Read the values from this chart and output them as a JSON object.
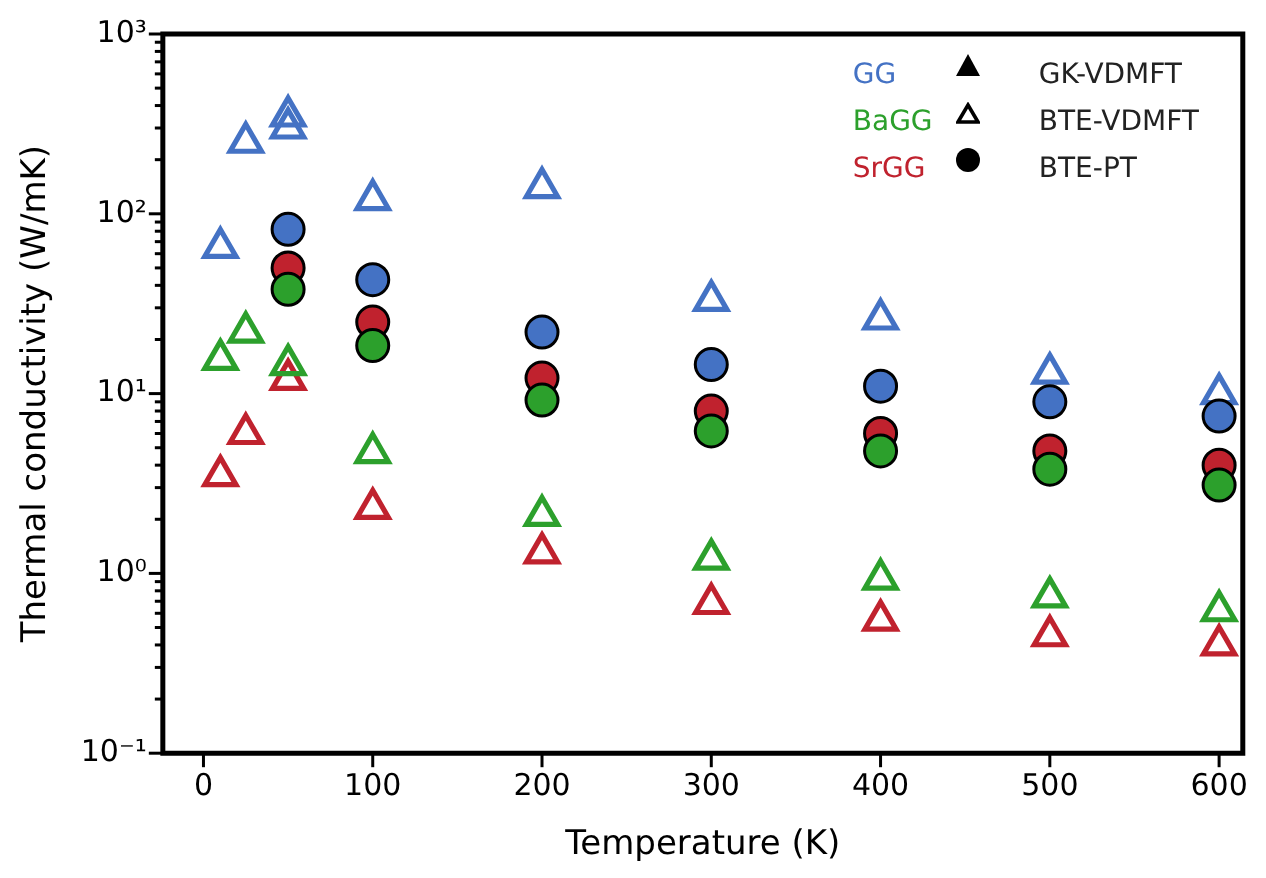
{
  "chart_data": {
    "type": "scatter",
    "xlabel": "Temperature (K)",
    "ylabel": "Thermal conductivity (W/mK)",
    "log": "y",
    "xlim": [
      -24,
      614
    ],
    "xticks": [
      0,
      100,
      200,
      300,
      400,
      500,
      600
    ],
    "ylim": [
      0.1,
      1000
    ],
    "yticks": [
      {
        "value": 0.1,
        "label": "10⁻¹"
      },
      {
        "value": 1,
        "label": "10⁰"
      },
      {
        "value": 10,
        "label": "10¹"
      },
      {
        "value": 100,
        "label": "10²"
      },
      {
        "value": 1000,
        "label": "10³"
      }
    ],
    "grid": false,
    "legend": "top right",
    "annotations": [
      "GK-VDMFT",
      "BTE-VDMFT",
      "BTE-PT"
    ],
    "series": [
      {
        "name": "GG",
        "color": "#4472c4",
        "marker": "triangle",
        "x": [
          10,
          25,
          50,
          50,
          100,
          200,
          300,
          400,
          500,
          600
        ],
        "values": [
          65,
          250,
          350,
          300,
          120,
          140,
          33,
          26,
          13,
          10
        ]
      },
      {
        "color": "#4472c4",
        "marker": "circle",
        "x": [
          50,
          100,
          200,
          300,
          400,
          500,
          600
        ],
        "values": [
          82,
          43,
          22,
          14.5,
          11,
          9,
          7.5
        ]
      },
      {
        "name": "BaGG",
        "color": "#2ca02c",
        "marker": "triangle",
        "x": [
          10,
          25,
          50,
          100,
          200,
          300,
          400,
          500,
          600
        ],
        "values": [
          15.5,
          22,
          14.5,
          4.7,
          2.1,
          1.2,
          0.93,
          0.74,
          0.62
        ]
      },
      {
        "color": "#2ca02c",
        "marker": "circle",
        "x": [
          50,
          100,
          200,
          300,
          400,
          500,
          600
        ],
        "values": [
          38,
          18.5,
          9.2,
          6.2,
          4.8,
          3.8,
          3.1
        ]
      },
      {
        "name": "SrGG",
        "color": "#c0222e",
        "marker": "triangle",
        "x": [
          10,
          25,
          50,
          100,
          200,
          300,
          400,
          500,
          600
        ],
        "values": [
          3.5,
          6,
          12,
          2.3,
          1.3,
          0.68,
          0.55,
          0.45,
          0.4
        ]
      },
      {
        "color": "#c0222e",
        "marker": "circle",
        "x": [
          50,
          100,
          200,
          300,
          400,
          500,
          600
        ],
        "values": [
          50,
          25,
          12.2,
          8,
          6,
          4.8,
          4
        ]
      }
    ]
  }
}
